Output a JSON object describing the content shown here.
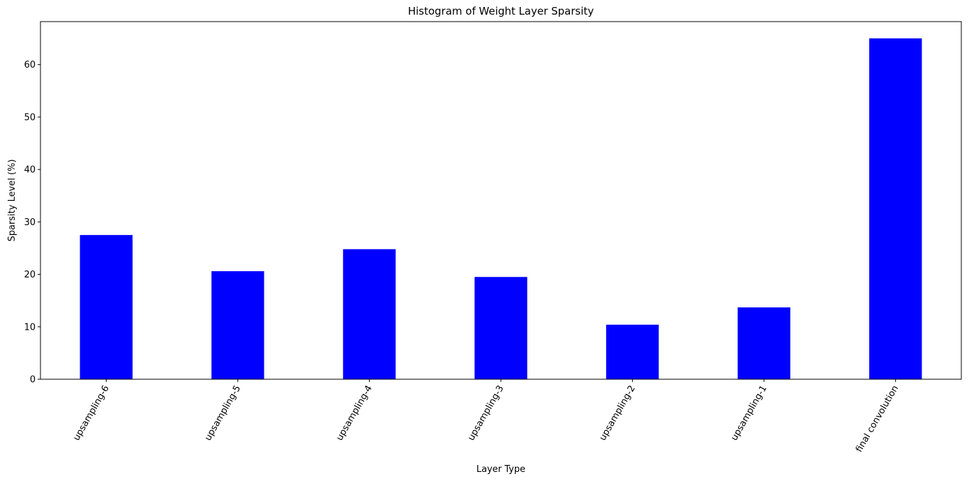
{
  "chart_data": {
    "type": "bar",
    "title": "Histogram of Weight Layer Sparsity",
    "xlabel": "Layer Type",
    "ylabel": "Sparsity Level (%)",
    "categories": [
      "upsampling-6",
      "upsampling-5",
      "upsampling-4",
      "upsampling-3",
      "upsampling-2",
      "upsampling-1",
      "final convolution"
    ],
    "values": [
      27.5,
      20.6,
      24.8,
      19.5,
      10.4,
      13.7,
      65.0
    ],
    "ylim": [
      0,
      68.2
    ],
    "yticks": [
      "0",
      "10",
      "20",
      "30",
      "40",
      "50",
      "60"
    ],
    "bar_color": "#0000ff",
    "grid": false,
    "legend": "none"
  }
}
